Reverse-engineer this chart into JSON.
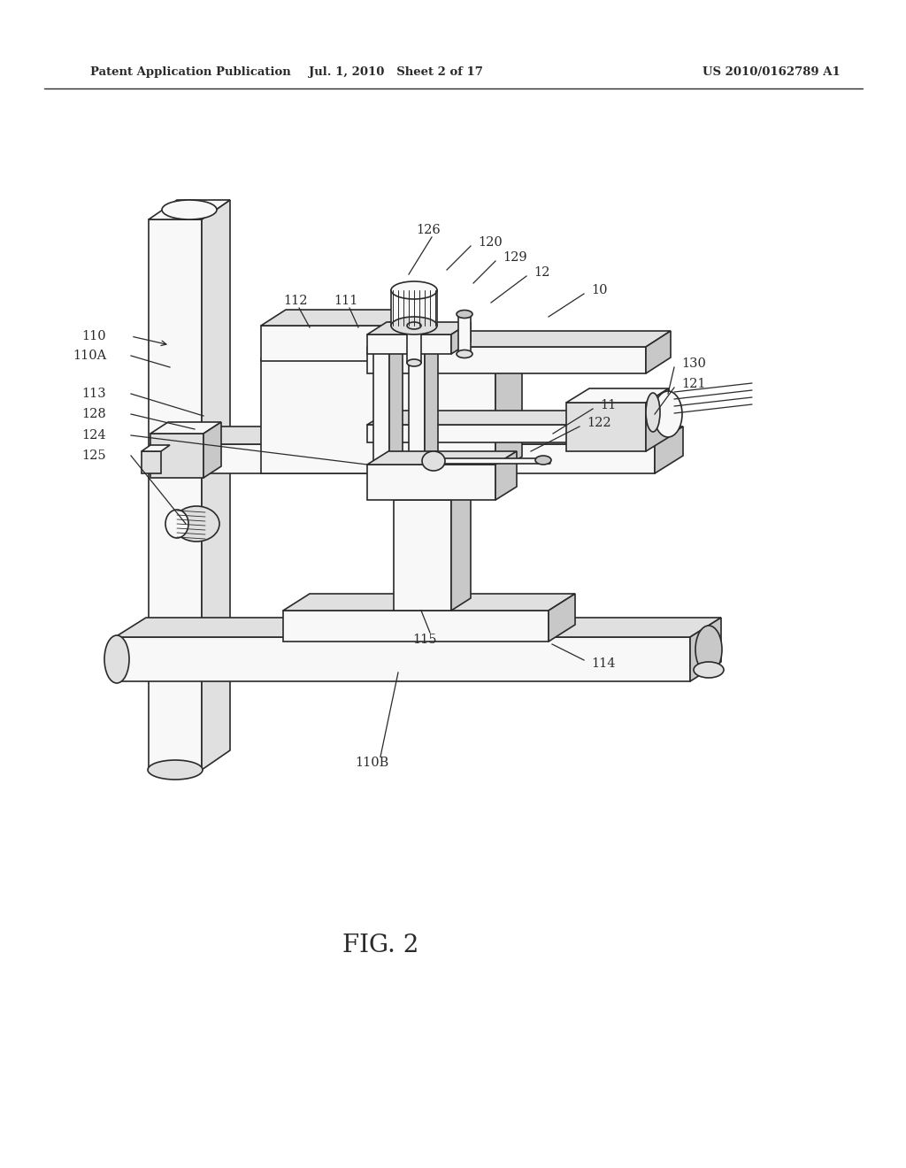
{
  "bg_color": "#ffffff",
  "line_color": "#2a2a2a",
  "fl": "#f8f8f8",
  "fm": "#e0e0e0",
  "fd": "#c8c8c8",
  "header_left": "Patent Application Publication",
  "header_mid": "Jul. 1, 2010   Sheet 2 of 17",
  "header_right": "US 2010/0162789 A1",
  "figure_label": "FIG. 2",
  "lw": 1.2
}
